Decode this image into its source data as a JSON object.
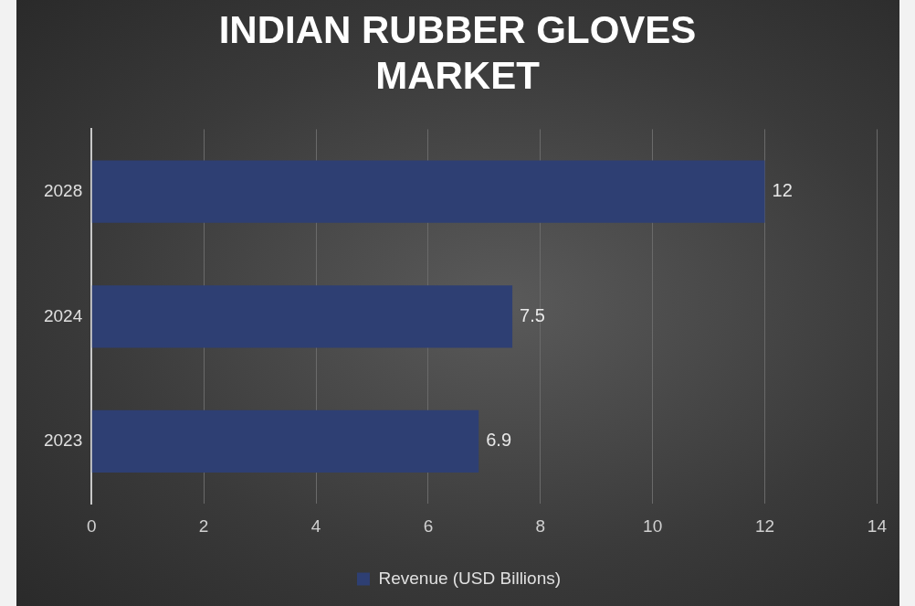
{
  "chart_data": {
    "type": "bar",
    "orientation": "horizontal",
    "title": "INDIAN RUBBER GLOVES MARKET",
    "categories": [
      "2028",
      "2024",
      "2023"
    ],
    "series": [
      {
        "name": "Revenue (USD Billions)",
        "color": "#2e3f73",
        "values": [
          12,
          7.5,
          6.9
        ]
      }
    ],
    "xlim": [
      0,
      14
    ],
    "xticks": [
      0,
      2,
      4,
      6,
      8,
      10,
      12,
      14
    ],
    "grid": "x",
    "legend": "bottom",
    "data_labels": true
  }
}
